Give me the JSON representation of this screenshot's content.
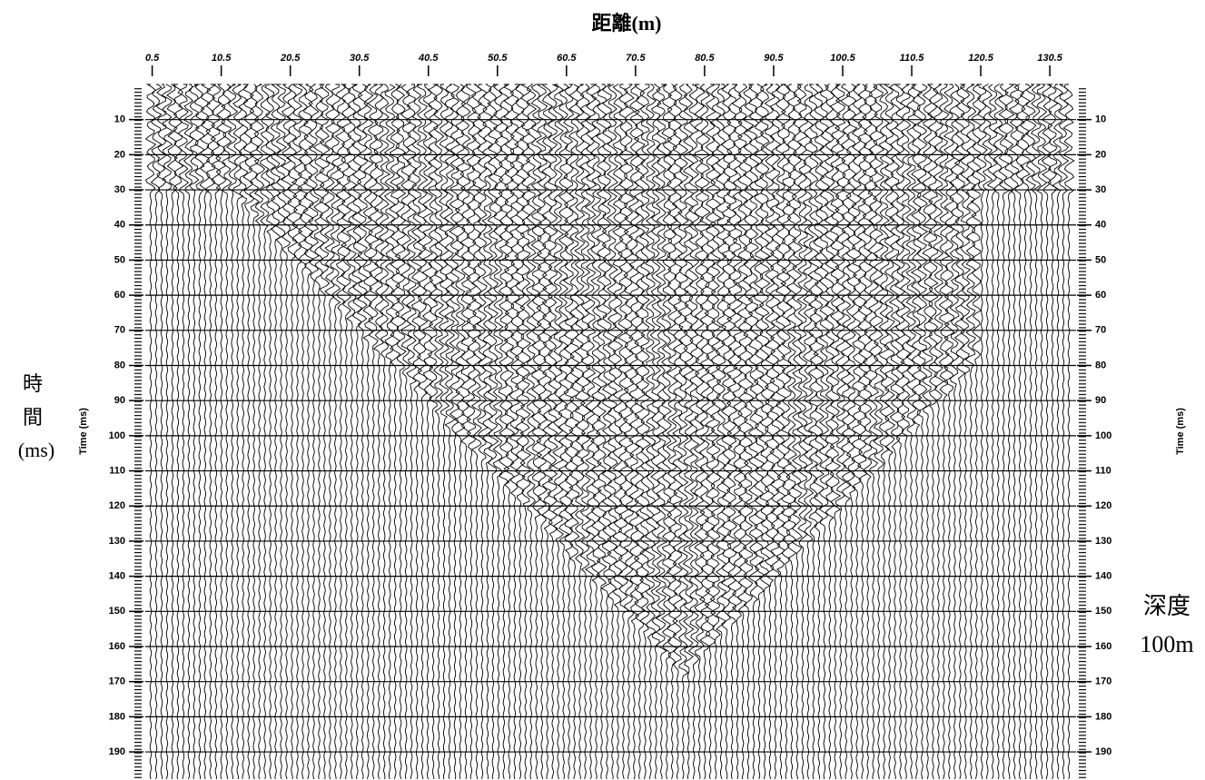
{
  "chart_data": {
    "type": "seismic",
    "title": "距離(m)",
    "y_label": "Time (ms)",
    "side_label": [
      "時",
      "間",
      "(ms)"
    ],
    "depth_label": [
      "深度",
      "100m"
    ],
    "xlim": [
      -0.5,
      134.3
    ],
    "xticks": [
      0.5,
      10.5,
      20.5,
      30.5,
      40.5,
      50.5,
      60.5,
      70.5,
      80.5,
      90.5,
      100.5,
      110.5,
      120.5,
      130.5
    ],
    "ylim": [
      0,
      198
    ],
    "yticks": [
      10,
      20,
      30,
      40,
      50,
      60,
      70,
      80,
      90,
      100,
      110,
      120,
      130,
      140,
      150,
      160,
      170,
      180,
      190
    ],
    "grid": true
  }
}
